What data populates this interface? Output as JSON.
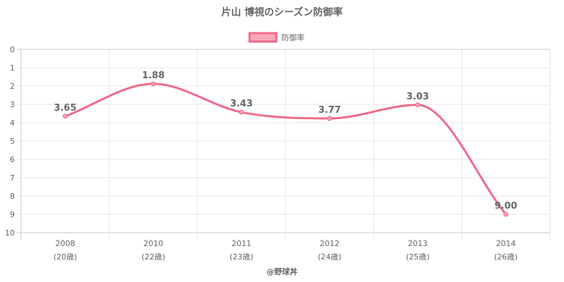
{
  "chart_data": {
    "type": "line",
    "title": "片山 博視のシーズン防御率",
    "legend": {
      "label": "防御率",
      "placement": "top"
    },
    "categories": [
      "2008",
      "2010",
      "2011",
      "2012",
      "2013",
      "2014"
    ],
    "category_sublabels": [
      "(20歳)",
      "(22歳)",
      "(23歳)",
      "(24歳)",
      "(25歳)",
      "(26歳)"
    ],
    "series": [
      {
        "name": "防御率",
        "values": [
          3.65,
          1.88,
          3.43,
          3.77,
          3.03,
          9.0
        ],
        "labels": [
          "3.65",
          "1.88",
          "3.43",
          "3.77",
          "3.03",
          "9.00"
        ]
      }
    ],
    "y_ticks": [
      "0",
      "1",
      "2",
      "3",
      "4",
      "5",
      "6",
      "7",
      "8",
      "9",
      "10"
    ],
    "ylim": [
      0,
      10
    ],
    "y_reversed": true,
    "grid": true,
    "colors": {
      "line": "#f06a8a",
      "point_fill": "#f8a2b6",
      "legend_fill": "#f8a8ba",
      "grid": "#e6e6e6",
      "axis": "#c8c8c8",
      "text": "#666666"
    }
  },
  "footer": "@野球丼"
}
